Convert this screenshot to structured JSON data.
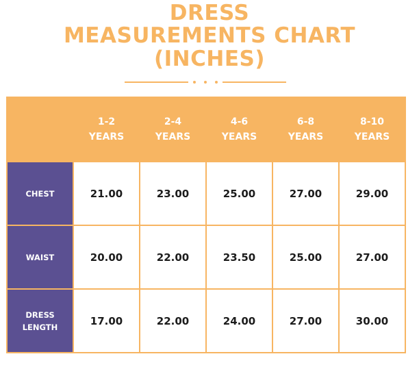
{
  "title": {
    "line1": "DRESS",
    "line2": "MEASUREMENTS CHART",
    "line3": "(INCHES)"
  },
  "colors": {
    "accent": "#f7b562",
    "row_header": "#5b5092",
    "text": "#1c1c1c"
  },
  "table": {
    "columns": [
      {
        "range": "1-2",
        "unit": "YEARS"
      },
      {
        "range": "2-4",
        "unit": "YEARS"
      },
      {
        "range": "4-6",
        "unit": "YEARS"
      },
      {
        "range": "6-8",
        "unit": "YEARS"
      },
      {
        "range": "8-10",
        "unit": "YEARS"
      }
    ],
    "rows": [
      {
        "label_lines": [
          "CHEST"
        ],
        "values": [
          "21.00",
          "23.00",
          "25.00",
          "27.00",
          "29.00"
        ]
      },
      {
        "label_lines": [
          "WAIST"
        ],
        "values": [
          "20.00",
          "22.00",
          "23.50",
          "25.00",
          "27.00"
        ]
      },
      {
        "label_lines": [
          "DRESS",
          "LENGTH"
        ],
        "values": [
          "17.00",
          "22.00",
          "24.00",
          "27.00",
          "30.00"
        ]
      }
    ]
  }
}
